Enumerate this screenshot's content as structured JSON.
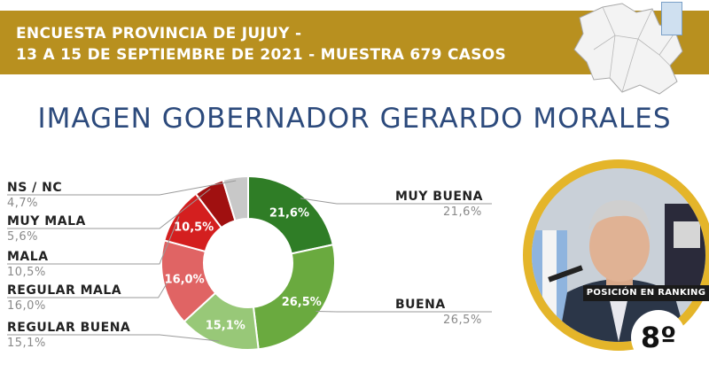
{
  "header": {
    "line1": "ENCUESTA PROVINCIA DE JUJUY -",
    "line2": "13 A 15 DE SEPTIEMBRE DE 2021  - MUESTRA 679 CASOS"
  },
  "title": "IMAGEN GOBERNADOR  GERARDO MORALES",
  "ranking": {
    "label": "POSICIÓN EN RANKING",
    "value": "8º"
  },
  "chart_data": {
    "type": "pie",
    "donut": true,
    "title": "",
    "categories": [
      "MUY BUENA",
      "BUENA",
      "REGULAR BUENA",
      "REGULAR MALA",
      "MALA",
      "MUY MALA",
      "NS / NC"
    ],
    "values": [
      21.6,
      26.5,
      15.1,
      16.0,
      10.5,
      5.6,
      4.7
    ],
    "value_labels": [
      "21,6%",
      "26,5%",
      "15,1%",
      "16,0%",
      "10,5%",
      "5,6%",
      "4,7%"
    ],
    "slice_labels": [
      "21,6%",
      "26,5%",
      "15,1%",
      "16,0%",
      "10,5%",
      "",
      ""
    ],
    "colors": [
      "#2f7d26",
      "#6aaa3f",
      "#98c878",
      "#e06464",
      "#d41f1f",
      "#a01010",
      "#c8c8c8"
    ]
  }
}
